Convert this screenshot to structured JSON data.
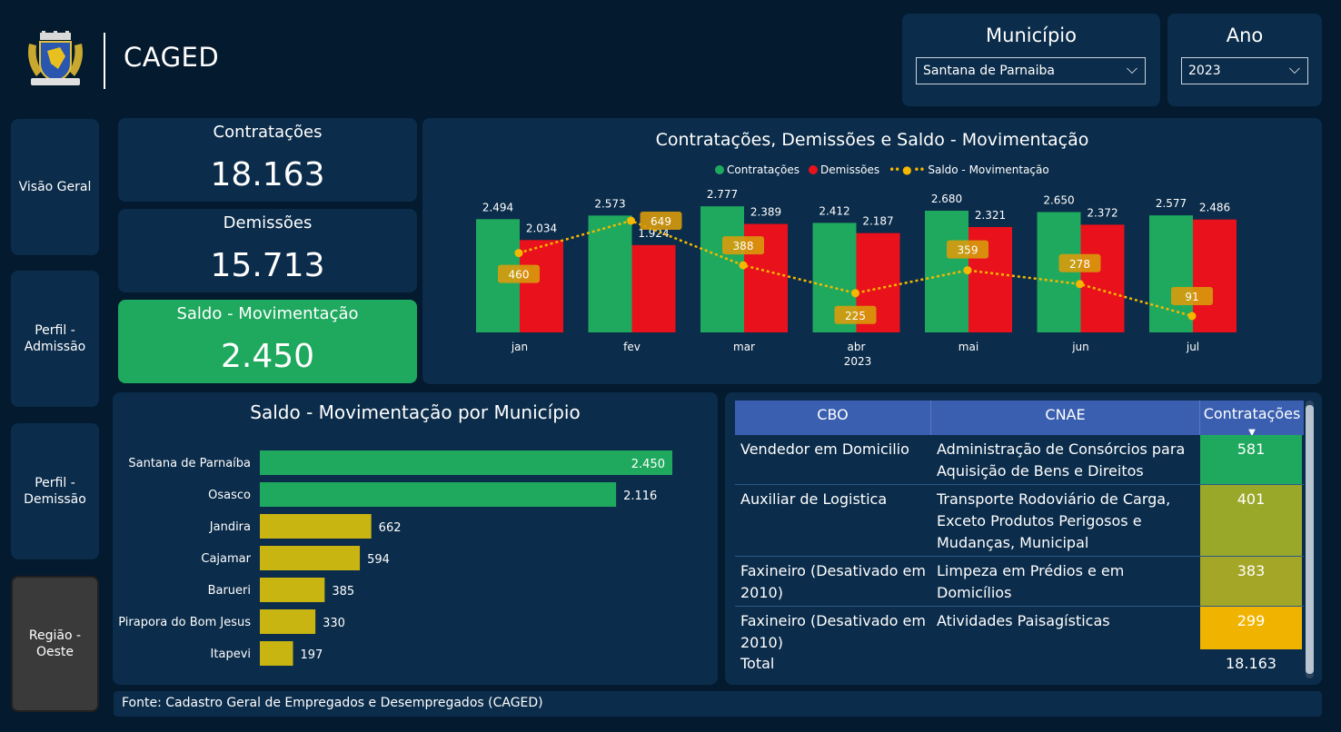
{
  "app": {
    "title": "CAGED"
  },
  "filters": {
    "municipio": {
      "label": "Município",
      "value": "Santana de Parnaiba"
    },
    "ano": {
      "label": "Ano",
      "value": "2023"
    }
  },
  "nav": [
    {
      "label": "Visão Geral",
      "active": false
    },
    {
      "label": "Perfil - Admissão",
      "active": false
    },
    {
      "label": "Perfil - Demissão",
      "active": false
    },
    {
      "label": "Região - Oeste",
      "active": true
    }
  ],
  "kpis": {
    "contratacoes": {
      "label": "Contratações",
      "value": "18.163"
    },
    "demissoes": {
      "label": "Demissões",
      "value": "15.713"
    },
    "saldo": {
      "label": "Saldo - Movimentação",
      "value": "2.450"
    }
  },
  "colors": {
    "contratacoes": "#1fa95e",
    "demissoes": "#e8111c",
    "saldo": "#f5b800",
    "bar_yellow": "#c9b512"
  },
  "chart_data": [
    {
      "type": "bar",
      "title": "Contratações, Demissões e Saldo - Movimentação",
      "xlabel": "2023",
      "categories": [
        "jan",
        "fev",
        "mar",
        "abr",
        "mai",
        "jun",
        "jul"
      ],
      "series": [
        {
          "name": "Contratações",
          "values": [
            2494,
            2573,
            2777,
            2412,
            2680,
            2650,
            2577
          ],
          "labels": [
            "2.494",
            "2.573",
            "2.777",
            "2.412",
            "2.680",
            "2.650",
            "2.577"
          ]
        },
        {
          "name": "Demissões",
          "values": [
            2034,
            1924,
            2389,
            2187,
            2321,
            2372,
            2486
          ],
          "labels": [
            "2.034",
            "1.924",
            "2.389",
            "2.187",
            "2.321",
            "2.372",
            "2.486"
          ]
        },
        {
          "name": "Saldo - Movimentação",
          "type": "line",
          "values": [
            460,
            649,
            388,
            225,
            359,
            278,
            91
          ],
          "labels": [
            "460",
            "649",
            "388",
            "225",
            "359",
            "278",
            "91"
          ]
        }
      ],
      "legend": "top-center"
    },
    {
      "type": "bar",
      "orientation": "horizontal",
      "title": "Saldo - Movimentação por Município",
      "categories": [
        "Santana de Parnaíba",
        "Osasco",
        "Jandira",
        "Cajamar",
        "Barueri",
        "Pirapora do Bom Jesus",
        "Itapevi"
      ],
      "values": [
        2450,
        2116,
        662,
        594,
        385,
        330,
        197
      ],
      "labels": [
        "2.450",
        "2.116",
        "662",
        "594",
        "385",
        "330",
        "197"
      ]
    }
  ],
  "table": {
    "headers": [
      "CBO",
      "CNAE",
      "Contratações"
    ],
    "rows": [
      {
        "cbo": "Vendedor em Domicilio",
        "cnae": "Administração de Consórcios para Aquisição de Bens e Direitos",
        "contratacoes": "581",
        "color": "#1fa95e"
      },
      {
        "cbo": "Auxiliar de Logistica",
        "cnae": "Transporte Rodoviário de Carga, Exceto Produtos Perigosos e Mudanças, Municipal",
        "contratacoes": "401",
        "color": "#9aa82a"
      },
      {
        "cbo": "Faxineiro (Desativado em 2010)",
        "cnae": "Limpeza em Prédios e em Domicílios",
        "contratacoes": "383",
        "color": "#a3a626"
      },
      {
        "cbo": "Faxineiro (Desativado em 2010)",
        "cnae": "Atividades Paisagísticas",
        "contratacoes": "299",
        "color": "#f0b400"
      }
    ],
    "total_label": "Total",
    "total_value": "18.163"
  },
  "footer": {
    "text": "Fonte: Cadastro Geral de Empregados e Desempregados (CAGED)"
  }
}
